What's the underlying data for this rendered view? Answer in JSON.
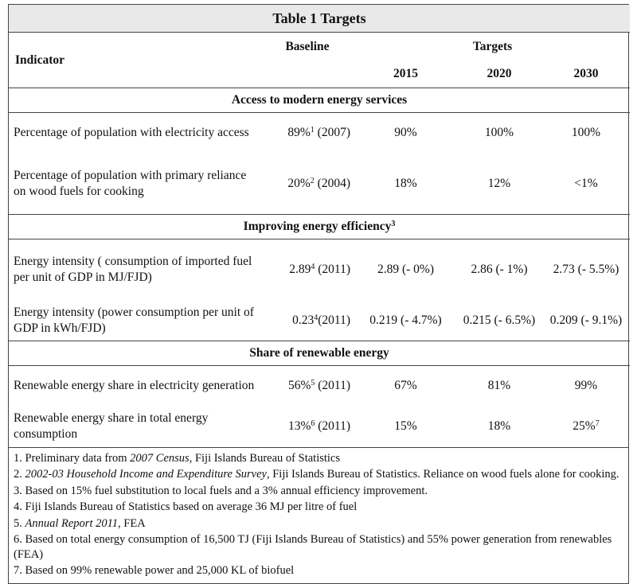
{
  "title": "Table 1 Targets",
  "header": {
    "indicator": "Indicator",
    "baseline": "Baseline",
    "targets": "Targets",
    "years": [
      "2015",
      "2020",
      "2030"
    ]
  },
  "sections": [
    {
      "title": {
        "text": "Access to modern energy services"
      },
      "rows": [
        {
          "indicator": "Percentage of population with electricity access",
          "baseline": {
            "text": "89%",
            "sup": "1",
            "after": " (2007)"
          },
          "targets": [
            {
              "text": "90%"
            },
            {
              "text": "100%"
            },
            {
              "text": "100%"
            }
          ]
        },
        {
          "indicator": "Percentage of population with primary reliance on wood fuels for cooking",
          "baseline": {
            "text": "20%",
            "sup": "2",
            "after": " (2004)"
          },
          "targets": [
            {
              "text": "18%"
            },
            {
              "text": "12%"
            },
            {
              "text": "<1%"
            }
          ]
        }
      ]
    },
    {
      "title": {
        "text": "Improving energy efficiency",
        "sup": "3"
      },
      "rows": [
        {
          "indicator": "Energy intensity ( consumption of imported fuel per unit of GDP in MJ/FJD)",
          "baseline": {
            "text": "2.89",
            "sup": "4",
            "after": " (2011)"
          },
          "targets": [
            {
              "text": "2.89 (- 0%)"
            },
            {
              "text": "2.86 (- 1%)"
            },
            {
              "text": "2.73 (- 5.5%)"
            }
          ]
        },
        {
          "indicator": "Energy intensity (power consumption per unit of GDP in kWh/FJD)",
          "baseline": {
            "text": "0.23",
            "sup": "4",
            "after": "(2011)"
          },
          "targets": [
            {
              "text": "0.219 (- 4.7%)"
            },
            {
              "text": "0.215 (- 6.5%)"
            },
            {
              "text": "0.209 (- 9.1%)"
            }
          ]
        }
      ]
    },
    {
      "title": {
        "text": "Share of renewable energy"
      },
      "rows": [
        {
          "indicator": "Renewable energy share in electricity generation",
          "baseline": {
            "text": "56%",
            "sup": "5",
            "after": " (2011)"
          },
          "targets": [
            {
              "text": "67%"
            },
            {
              "text": "81%"
            },
            {
              "text": "99%"
            }
          ]
        },
        {
          "indicator": "Renewable energy share in total energy consumption",
          "baseline": {
            "text": "13%",
            "sup": "6",
            "after": " (2011)"
          },
          "targets": [
            {
              "text": "15%"
            },
            {
              "text": "18%"
            },
            {
              "text": "25%",
              "sup": "7"
            }
          ]
        }
      ]
    }
  ],
  "footnotes": [
    {
      "number": "1.",
      "parts": [
        {
          "text": "Preliminary data from "
        },
        {
          "text": "2007 Census",
          "italic": true
        },
        {
          "text": ", Fiji Islands Bureau of Statistics"
        }
      ]
    },
    {
      "number": "2.",
      "parts": [
        {
          "text": "2002-03 Household Income and Expenditure Survey",
          "italic": true
        },
        {
          "text": ", Fiji Islands Bureau of Statistics. Reliance on wood fuels alone for cooking."
        }
      ]
    },
    {
      "number": "3.",
      "parts": [
        {
          "text": "Based on 15% fuel substitution to local fuels and a 3% annual efficiency improvement."
        }
      ]
    },
    {
      "number": "4.",
      "parts": [
        {
          "text": "Fiji Islands Bureau of Statistics based on average 36 MJ per litre of fuel"
        }
      ]
    },
    {
      "number": "5.",
      "parts": [
        {
          "text": "Annual Report 2011",
          "italic": true
        },
        {
          "text": ", FEA"
        }
      ]
    },
    {
      "number": "6.",
      "parts": [
        {
          "text": "Based on total energy consumption of 16,500 TJ (Fiji Islands Bureau of Statistics) and 55% power generation from renewables (FEA)"
        }
      ]
    },
    {
      "number": "7.",
      "parts": [
        {
          "text": "Based on 99% renewable power and 25,000 KL of biofuel"
        }
      ]
    }
  ]
}
